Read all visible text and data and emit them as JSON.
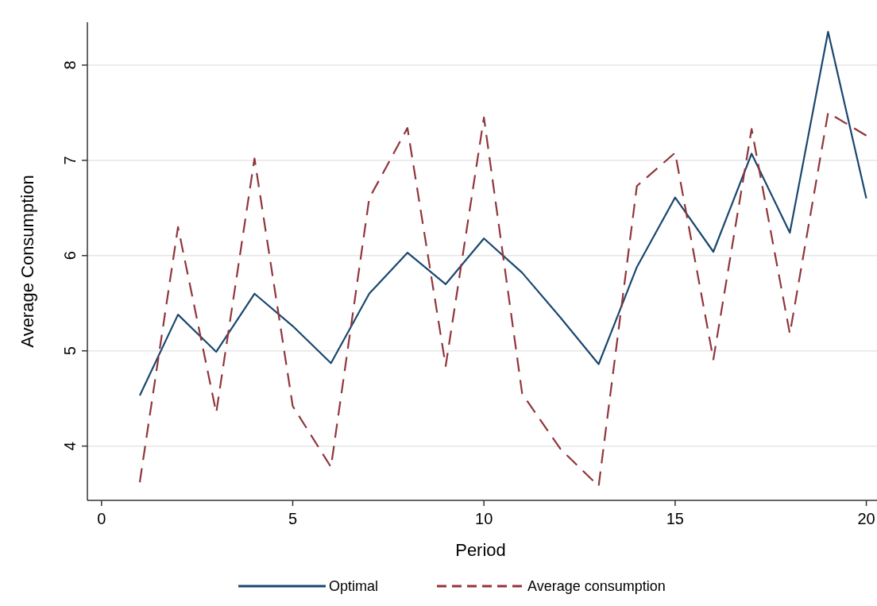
{
  "chart_data": {
    "type": "line",
    "xlabel": "Period",
    "ylabel": "Average Consumption",
    "x": [
      1,
      2,
      3,
      4,
      5,
      6,
      7,
      8,
      9,
      10,
      11,
      12,
      13,
      14,
      15,
      16,
      17,
      18,
      19,
      20
    ],
    "series": [
      {
        "name": "Optimal",
        "color": "#1a476f",
        "line_style": "solid",
        "values": [
          4.53,
          5.38,
          4.99,
          5.6,
          5.26,
          4.87,
          5.6,
          6.03,
          5.7,
          6.18,
          5.82,
          5.35,
          4.86,
          5.88,
          6.61,
          6.04,
          7.07,
          6.24,
          8.35,
          6.6
        ]
      },
      {
        "name": "Average consumption",
        "color": "#90353b",
        "line_style": "dashed",
        "values": [
          3.62,
          6.3,
          4.35,
          7.02,
          4.42,
          3.78,
          6.6,
          7.34,
          4.84,
          7.45,
          4.55,
          3.97,
          3.58,
          6.73,
          7.08,
          4.91,
          7.33,
          5.18,
          7.5,
          7.26
        ]
      }
    ],
    "xlim": [
      -0.37,
      20.3
    ],
    "xticks": [
      0,
      5,
      10,
      15,
      20
    ],
    "ylim": [
      3.43,
      8.45
    ],
    "yticks": [
      4,
      5,
      6,
      7,
      8
    ],
    "grid": "y",
    "legend": "bottom"
  }
}
